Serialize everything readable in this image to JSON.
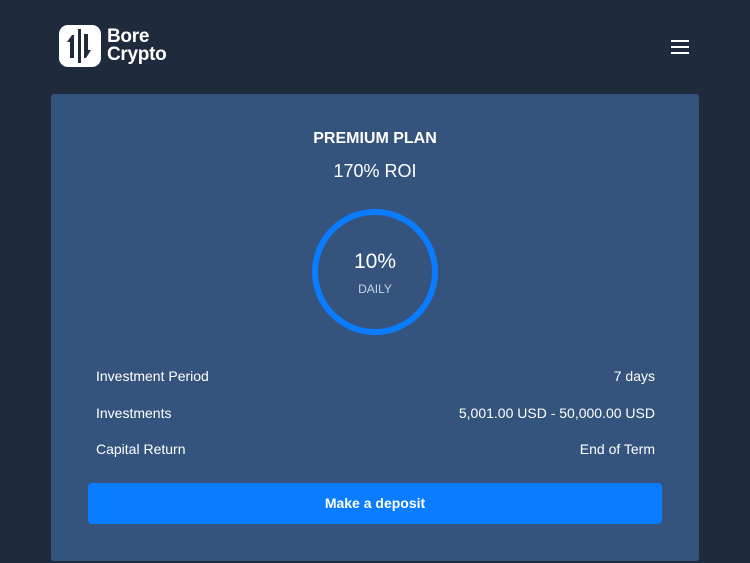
{
  "header": {
    "logo_text_line1": "Bore",
    "logo_text_line2": "Crypto",
    "menu_icon": "hamburger-icon"
  },
  "plan": {
    "title": "PREMIUM PLAN",
    "roi": "170% ROI",
    "rate": "10%",
    "rate_period": "DAILY",
    "details": [
      {
        "label": "Investment Period",
        "value": "7 days"
      },
      {
        "label": "Investments",
        "value": "5,001.00 USD - 50,000.00 USD"
      },
      {
        "label": "Capital Return",
        "value": "End of Term"
      }
    ],
    "cta": "Make a deposit"
  },
  "colors": {
    "background": "#1f2a3c",
    "card": "#34547e",
    "accent": "#0a7cff"
  }
}
